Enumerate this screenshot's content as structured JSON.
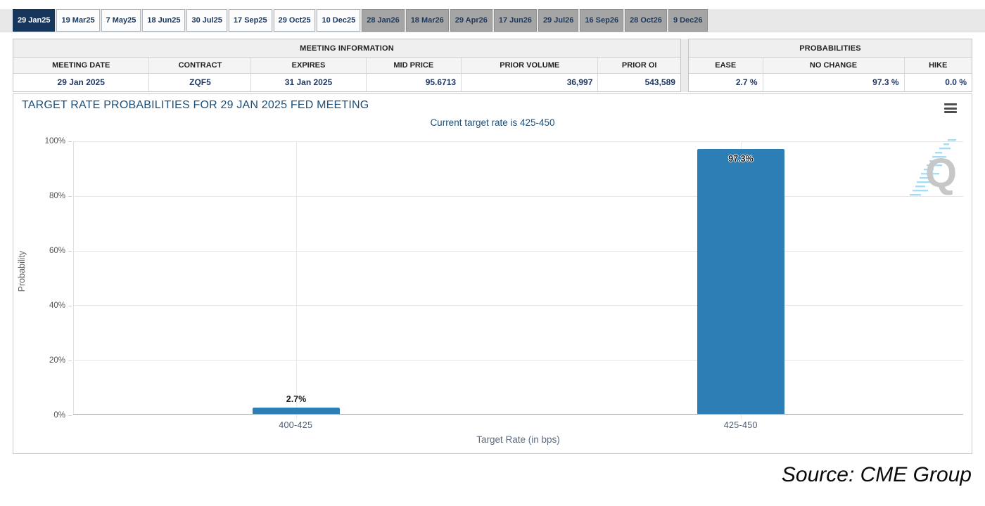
{
  "tabs": [
    {
      "label": "29 Jan25",
      "state": "active"
    },
    {
      "label": "19 Mar25",
      "state": "near"
    },
    {
      "label": "7 May25",
      "state": "near"
    },
    {
      "label": "18 Jun25",
      "state": "near"
    },
    {
      "label": "30 Jul25",
      "state": "near"
    },
    {
      "label": "17 Sep25",
      "state": "near"
    },
    {
      "label": "29 Oct25",
      "state": "near"
    },
    {
      "label": "10 Dec25",
      "state": "near"
    },
    {
      "label": "28 Jan26",
      "state": "far"
    },
    {
      "label": "18 Mar26",
      "state": "far"
    },
    {
      "label": "29 Apr26",
      "state": "far"
    },
    {
      "label": "17 Jun26",
      "state": "far"
    },
    {
      "label": "29 Jul26",
      "state": "far"
    },
    {
      "label": "16 Sep26",
      "state": "far"
    },
    {
      "label": "28 Oct26",
      "state": "far"
    },
    {
      "label": "9 Dec26",
      "state": "far"
    }
  ],
  "meeting_info": {
    "title": "MEETING INFORMATION",
    "headers": [
      "MEETING DATE",
      "CONTRACT",
      "EXPIRES",
      "MID PRICE",
      "PRIOR VOLUME",
      "PRIOR OI"
    ],
    "values": [
      "29 Jan 2025",
      "ZQF5",
      "31 Jan 2025",
      "95.6713",
      "36,997",
      "543,589"
    ]
  },
  "probabilities": {
    "title": "PROBABILITIES",
    "headers": [
      "EASE",
      "NO CHANGE",
      "HIKE"
    ],
    "values": [
      "2.7 %",
      "97.3 %",
      "0.0 %"
    ]
  },
  "chart_data": {
    "type": "bar",
    "title": "TARGET RATE PROBABILITIES FOR 29 JAN 2025 FED MEETING",
    "subtitle": "Current target rate is 425-450",
    "categories": [
      "400-425",
      "425-450"
    ],
    "values": [
      2.7,
      97.3
    ],
    "bar_labels": [
      "2.7%",
      "97.3%"
    ],
    "xlabel": "Target Rate (in bps)",
    "ylabel": "Probability",
    "ylim": [
      0,
      100
    ],
    "yticks": [
      0,
      20,
      40,
      60,
      80,
      100
    ],
    "ytick_labels_desc": [
      "100%",
      "80%",
      "60%",
      "40%",
      "20%",
      "0%"
    ],
    "grid": true,
    "legend": false,
    "bar_color": "#2d7eb5",
    "watermark_letter": "Q"
  },
  "icons": {
    "chart_menu": "hamburger-menu-icon",
    "watermark": "quikstrike-q-watermark"
  },
  "colors": {
    "active_tab_bg": "#17365d",
    "far_tab_bg": "#a5a5a5",
    "bar": "#2d7eb5",
    "chart_text": "#1d4e77",
    "table_value_text": "#1f3864"
  },
  "footer": {
    "source": "Source: CME Group"
  }
}
